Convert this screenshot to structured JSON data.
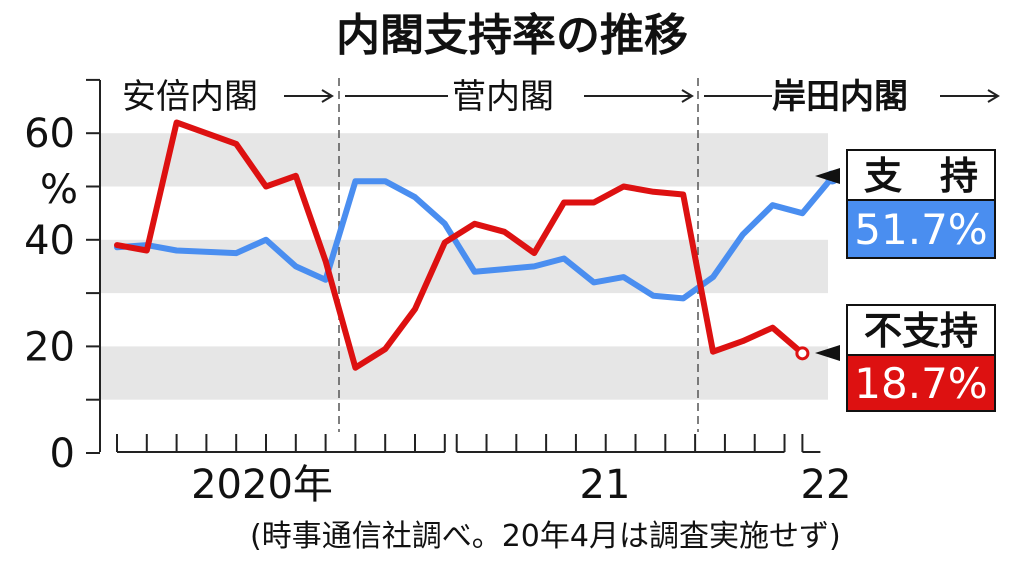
{
  "chart_data": {
    "type": "line",
    "title": "内閣支持率の推移",
    "ylim": [
      0,
      70
    ],
    "y_ticks": [
      0,
      20,
      40,
      60
    ],
    "y_tick_labels": [
      "0",
      "20",
      "40",
      "60"
    ],
    "y_unit": "%",
    "x_tick_labels": [
      "2020年",
      "21",
      "22"
    ],
    "eras": [
      "安倍内閣",
      "菅内閣",
      "岸田内閣"
    ],
    "source_note": "(時事通信社調べ。20年4月は調査実施せず)",
    "series": [
      {
        "name": "支　持",
        "value_label": "51.7%",
        "color": "#4a8ef0",
        "points": [
          [
            "2020-01",
            38.6
          ],
          [
            "2020-02",
            39.0
          ],
          [
            "2020-03",
            38.0
          ],
          [
            "2020-05",
            37.5
          ],
          [
            "2020-06",
            40.0
          ],
          [
            "2020-07",
            35.0
          ],
          [
            "2020-08",
            32.5
          ],
          [
            "2020-09",
            51.0
          ],
          [
            "2020-10",
            51.0
          ],
          [
            "2020-11",
            48.0
          ],
          [
            "2020-12",
            43.0
          ],
          [
            "2021-01",
            34.0
          ],
          [
            "2021-02",
            34.5
          ],
          [
            "2021-03",
            35.0
          ],
          [
            "2021-04",
            36.5
          ],
          [
            "2021-05",
            32.0
          ],
          [
            "2021-06",
            33.0
          ],
          [
            "2021-07",
            29.5
          ],
          [
            "2021-08",
            29.0
          ],
          [
            "2021-09",
            33.0
          ],
          [
            "2021-10",
            41.0
          ],
          [
            "2021-11",
            46.5
          ],
          [
            "2021-12",
            45.0
          ],
          [
            "2022-01",
            51.7
          ]
        ]
      },
      {
        "name": "不支持",
        "value_label": "18.7%",
        "color": "#dd1111",
        "points": [
          [
            "2020-01",
            39.0
          ],
          [
            "2020-02",
            38.0
          ],
          [
            "2020-03",
            62.0
          ],
          [
            "2020-05",
            58.0
          ],
          [
            "2020-06",
            50.0
          ],
          [
            "2020-07",
            52.0
          ],
          [
            "2020-08",
            36.0
          ],
          [
            "2020-09",
            16.0
          ],
          [
            "2020-10",
            19.5
          ],
          [
            "2020-11",
            27.0
          ],
          [
            "2020-12",
            39.5
          ],
          [
            "2021-01",
            43.0
          ],
          [
            "2021-02",
            41.5
          ],
          [
            "2021-03",
            37.5
          ],
          [
            "2021-04",
            47.0
          ],
          [
            "2021-05",
            47.0
          ],
          [
            "2021-06",
            50.0
          ],
          [
            "2021-07",
            49.0
          ],
          [
            "2021-08",
            48.5
          ],
          [
            "2021-09",
            19.0
          ],
          [
            "2021-10",
            21.0
          ],
          [
            "2021-11",
            23.5
          ],
          [
            "2021-12",
            18.7
          ]
        ]
      }
    ]
  }
}
